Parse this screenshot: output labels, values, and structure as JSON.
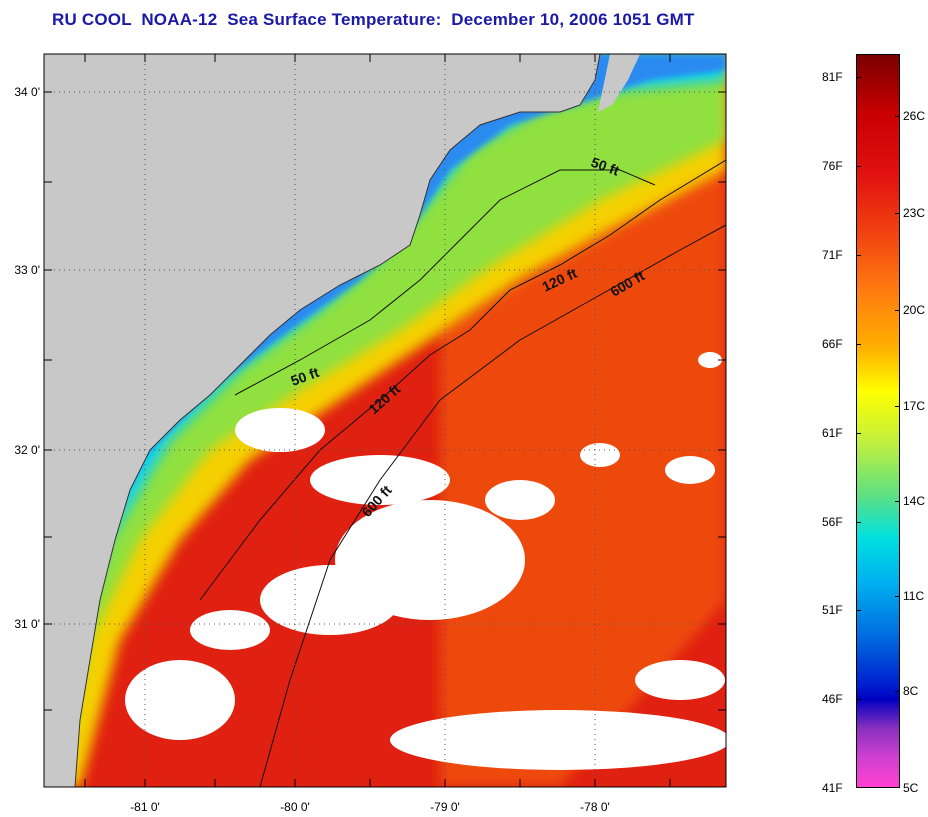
{
  "title": "RU COOL  NOAA-12  Sea Surface Temperature:  December 10, 2006 1051 GMT",
  "map": {
    "longitude_ticks": [
      "-81 0'",
      "-80 0'",
      "-79 0'",
      "-78 0'"
    ],
    "latitude_ticks": [
      "34 0'",
      "33 0'",
      "32 0'",
      "31 0'"
    ],
    "depth_labels": [
      "50 ft",
      "120 ft",
      "600 ft",
      "50 ft",
      "120 ft",
      "600 ft"
    ],
    "colors": {
      "land": "#c8c8c8",
      "cloud": "#ffffff"
    }
  },
  "colorbar": {
    "fahrenheit": [
      "81F",
      "76F",
      "71F",
      "66F",
      "61F",
      "56F",
      "51F",
      "46F",
      "41F"
    ],
    "celsius": [
      "26C",
      "23C",
      "20C",
      "17C",
      "14C",
      "11C",
      "8C",
      "5C"
    ]
  }
}
